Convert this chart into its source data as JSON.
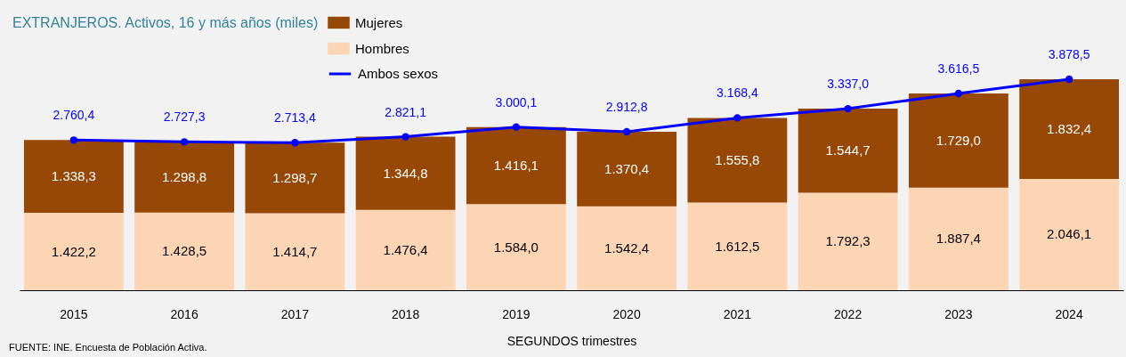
{
  "chart_data": {
    "type": "bar",
    "title": "EXTRANJEROS. Activos, 16 y más años (miles)",
    "xlabel": "SEGUNDOS trimestres",
    "annotations": [
      "FUENTE: INE. Encuesta de Población Activa."
    ],
    "categories": [
      "2015",
      "2016",
      "2017",
      "2018",
      "2019",
      "2020",
      "2021",
      "2022",
      "2023",
      "2024"
    ],
    "stacked": true,
    "tick_labels": "x",
    "legend": "top left",
    "series": [
      {
        "name": "Hombres",
        "color": "#fcd5b5",
        "values": [
          1422.2,
          1428.5,
          1414.7,
          1476.4,
          1584.0,
          1542.4,
          1612.5,
          1792.3,
          1887.4,
          2046.1
        ],
        "value_labels": [
          "1.422,2",
          "1.428,5",
          "1.414,7",
          "1.476,4",
          "1.584,0",
          "1.542,4",
          "1.612,5",
          "1.792,3",
          "1.887,4",
          "2.046,1"
        ]
      },
      {
        "name": "Mujeres",
        "color": "#974706",
        "values": [
          1338.3,
          1298.8,
          1298.7,
          1344.8,
          1416.1,
          1370.4,
          1555.8,
          1544.7,
          1729.0,
          1832.4
        ],
        "value_labels": [
          "1.338,3",
          "1.298,8",
          "1.298,7",
          "1.344,8",
          "1.416,1",
          "1.370,4",
          "1.555,8",
          "1.544,7",
          "1.729,0",
          "1.832,4"
        ]
      },
      {
        "name": "Ambos sexos",
        "type": "line",
        "color": "#0000ff",
        "marker": "circle",
        "line_style": "solid",
        "values": [
          2760.4,
          2727.3,
          2713.4,
          2821.1,
          3000.1,
          2912.8,
          3168.4,
          3337.0,
          3616.5,
          3878.5
        ],
        "value_labels": [
          "2.760,4",
          "2.727,3",
          "2.713,4",
          "2.821,1",
          "3.000,1",
          "2.912,8",
          "3.168,4",
          "3.337,0",
          "3.616,5",
          "3.878,5"
        ]
      }
    ]
  }
}
